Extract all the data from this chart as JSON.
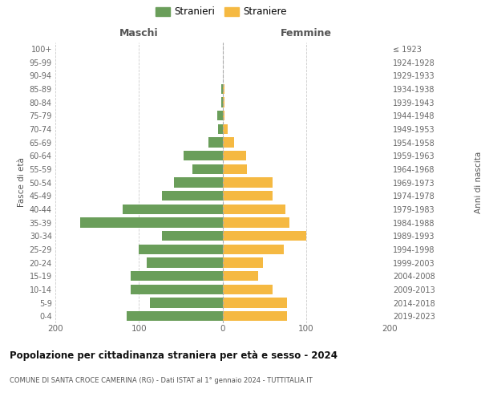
{
  "age_groups": [
    "0-4",
    "5-9",
    "10-14",
    "15-19",
    "20-24",
    "25-29",
    "30-34",
    "35-39",
    "40-44",
    "45-49",
    "50-54",
    "55-59",
    "60-64",
    "65-69",
    "70-74",
    "75-79",
    "80-84",
    "85-89",
    "90-94",
    "95-99",
    "100+"
  ],
  "birth_years": [
    "2019-2023",
    "2014-2018",
    "2009-2013",
    "2004-2008",
    "1999-2003",
    "1994-1998",
    "1989-1993",
    "1984-1988",
    "1979-1983",
    "1974-1978",
    "1969-1973",
    "1964-1968",
    "1959-1963",
    "1954-1958",
    "1949-1953",
    "1944-1948",
    "1939-1943",
    "1934-1938",
    "1929-1933",
    "1924-1928",
    "≤ 1923"
  ],
  "maschi": [
    115,
    87,
    110,
    110,
    91,
    100,
    72,
    170,
    119,
    72,
    58,
    36,
    47,
    17,
    5,
    6,
    1,
    1,
    0,
    0,
    0
  ],
  "femmine": [
    77,
    77,
    60,
    43,
    48,
    73,
    100,
    80,
    75,
    60,
    60,
    29,
    28,
    14,
    6,
    2,
    2,
    2,
    0,
    0,
    0
  ],
  "male_color": "#6a9e5a",
  "female_color": "#f5b942",
  "background_color": "#ffffff",
  "grid_color": "#cccccc",
  "title": "Popolazione per cittadinanza straniera per età e sesso - 2024",
  "subtitle": "COMUNE DI SANTA CROCE CAMERINA (RG) - Dati ISTAT al 1° gennaio 2024 - TUTTITALIA.IT",
  "legend_maschi": "Stranieri",
  "legend_femmine": "Straniere",
  "label_maschi": "Maschi",
  "label_femmine": "Femmine",
  "ylabel_left": "Fasce di età",
  "ylabel_right": "Anni di nascita",
  "xlim": 200
}
